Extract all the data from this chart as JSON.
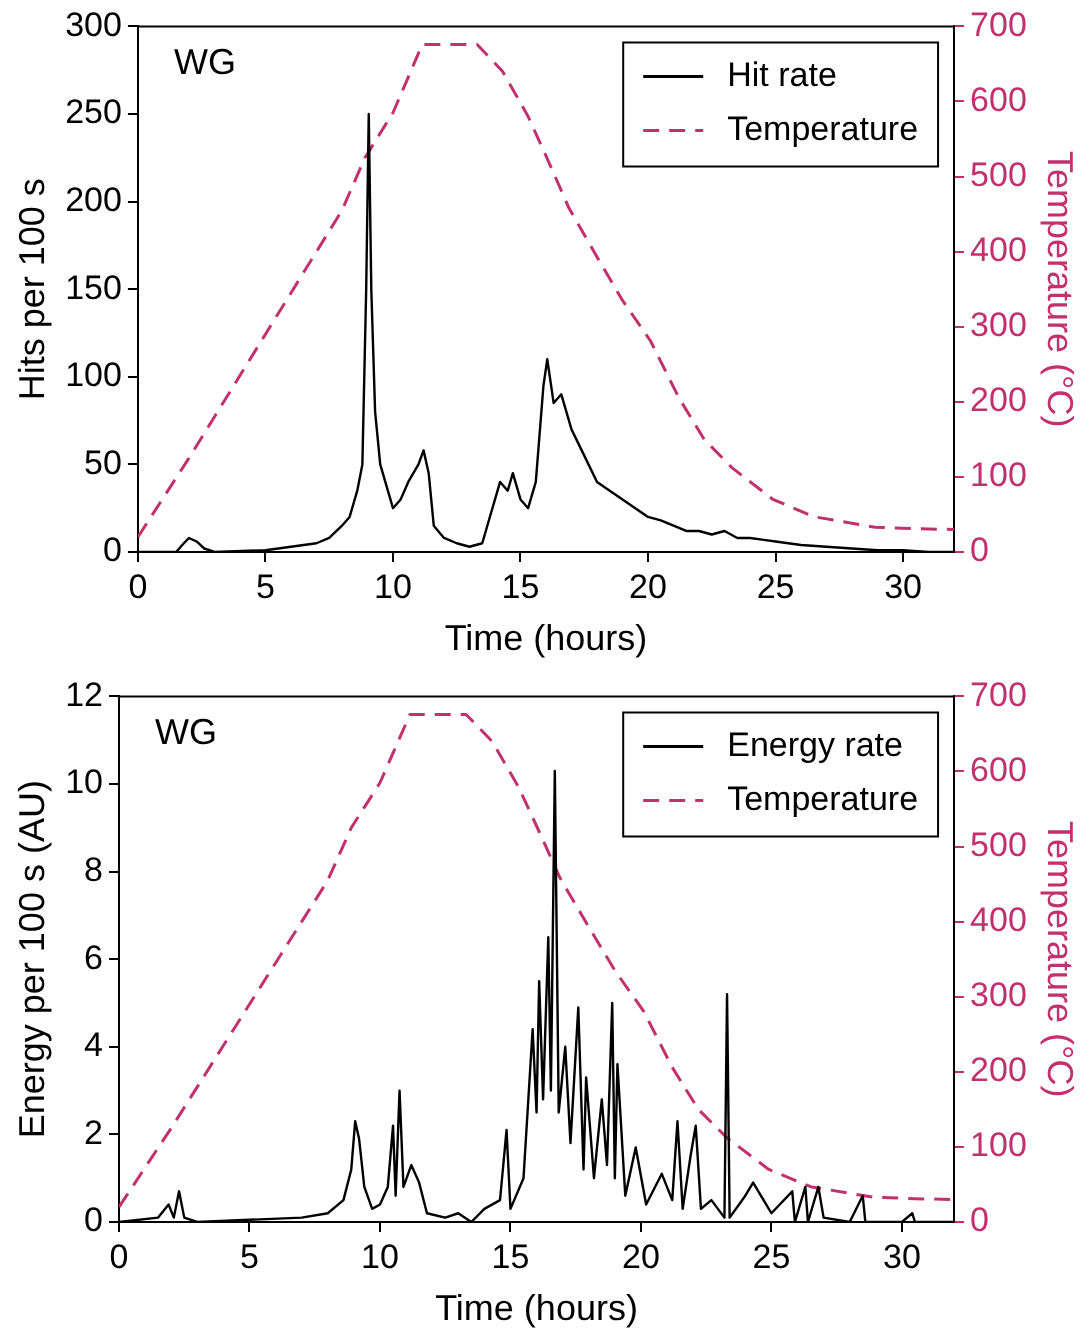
{
  "chart_data": [
    {
      "type": "line",
      "xlabel": "Time (hours)",
      "ylabel": "Hits per 100 s",
      "y2label": "Temperature (°C)",
      "annotations": [
        "WG"
      ],
      "legend": "top right",
      "xlim": [
        0,
        32
      ],
      "xticks": [
        0,
        5,
        10,
        15,
        20,
        25,
        30
      ],
      "ylim": [
        0,
        300
      ],
      "yticks": [
        0,
        50,
        100,
        150,
        200,
        250,
        300
      ],
      "y2lim": [
        0,
        700
      ],
      "y2ticks": [
        0,
        100,
        200,
        300,
        400,
        500,
        600,
        700
      ],
      "series": [
        {
          "name": "Hit rate",
          "color": "#000000",
          "line_style": "solid",
          "x": [
            0,
            1.5,
            1.8,
            2,
            2.3,
            2.6,
            3,
            5,
            6,
            7,
            7.5,
            8,
            8.3,
            8.6,
            8.8,
            8.95,
            9.05,
            9.15,
            9.3,
            9.5,
            9.7,
            10,
            10.3,
            10.6,
            11,
            11.2,
            11.4,
            11.6,
            12,
            12.5,
            13,
            13.5,
            13.8,
            14.2,
            14.5,
            14.7,
            15,
            15.3,
            15.6,
            15.9,
            16.05,
            16.3,
            16.6,
            17,
            17.5,
            18,
            18.5,
            19,
            19.5,
            20,
            20.5,
            21,
            21.5,
            22,
            22.5,
            23,
            23.5,
            24,
            25,
            26,
            27,
            28,
            29,
            30,
            31,
            32
          ],
          "values": [
            0,
            0,
            5,
            8,
            6,
            2,
            0,
            1,
            3,
            5,
            8,
            15,
            20,
            35,
            50,
            150,
            250,
            150,
            80,
            50,
            40,
            25,
            30,
            40,
            50,
            58,
            45,
            15,
            8,
            5,
            3,
            5,
            20,
            40,
            35,
            45,
            30,
            25,
            40,
            95,
            110,
            85,
            90,
            70,
            55,
            40,
            35,
            30,
            25,
            20,
            18,
            15,
            12,
            12,
            10,
            12,
            8,
            8,
            6,
            4,
            3,
            2,
            1,
            1,
            0,
            0
          ]
        },
        {
          "name": "Temperature",
          "color": "#c2306e",
          "line_style": "dashed",
          "axis": "y2",
          "x": [
            0,
            2,
            4,
            6,
            8,
            8.9,
            10,
            11.15,
            13.3,
            14.3,
            15.3,
            16.1,
            16.9,
            18,
            19,
            20.1,
            21.2,
            22.2,
            23.3,
            24.9,
            26.5,
            28.9,
            30.5,
            32
          ],
          "values": [
            20,
            125,
            235,
            345,
            455,
            525,
            585,
            676,
            676,
            640,
            580,
            520,
            458,
            393,
            335,
            281,
            206,
            150,
            112,
            70,
            47,
            33,
            31,
            30
          ]
        }
      ]
    },
    {
      "type": "line",
      "xlabel": "Time (hours)",
      "ylabel": "Energy per 100 s (AU)",
      "y2label": "Temperature (°C)",
      "annotations": [
        "WG"
      ],
      "legend": "top right",
      "xlim": [
        0,
        32
      ],
      "xticks": [
        0,
        5,
        10,
        15,
        20,
        25,
        30
      ],
      "ylim": [
        0,
        12
      ],
      "yticks": [
        0,
        2,
        4,
        6,
        8,
        10,
        12
      ],
      "y2lim": [
        0,
        700
      ],
      "y2ticks": [
        0,
        100,
        200,
        300,
        400,
        500,
        600,
        700
      ],
      "series": [
        {
          "name": "Energy rate",
          "color": "#000000",
          "line_style": "solid",
          "x": [
            0,
            1.5,
            1.9,
            2.1,
            2.3,
            2.5,
            3,
            5,
            7,
            8,
            8.6,
            8.9,
            9.05,
            9.2,
            9.4,
            9.7,
            10,
            10.3,
            10.5,
            10.6,
            10.75,
            10.9,
            11.2,
            11.5,
            11.8,
            12.5,
            13,
            13.5,
            14,
            14.6,
            14.85,
            15,
            15.5,
            15.85,
            16,
            16.1,
            16.25,
            16.45,
            16.55,
            16.7,
            16.85,
            17.1,
            17.3,
            17.6,
            17.8,
            17.9,
            18.2,
            18.5,
            18.7,
            18.9,
            19,
            19.1,
            19.4,
            19.8,
            20.2,
            20.8,
            21.2,
            21.4,
            21.6,
            21.9,
            22.1,
            22.3,
            22.7,
            23.2,
            23.3,
            23.4,
            24,
            24.3,
            25,
            25.8,
            25.9,
            26.3,
            26.4,
            26.8,
            27,
            28,
            28.5,
            28.6,
            30,
            30.4,
            30.5,
            32
          ],
          "values": [
            0,
            0.1,
            0.4,
            0.1,
            0.7,
            0.1,
            0,
            0.05,
            0.1,
            0.2,
            0.5,
            1.2,
            2.3,
            1.9,
            0.8,
            0.3,
            0.4,
            0.8,
            2.2,
            0.6,
            3.0,
            0.8,
            1.3,
            0.9,
            0.2,
            0.1,
            0.2,
            0,
            0.3,
            0.5,
            2.1,
            0.3,
            1.0,
            4.4,
            2.5,
            5.5,
            2.8,
            6.5,
            3,
            10.3,
            2.5,
            4.0,
            1.8,
            4.9,
            1.2,
            3.3,
            1.0,
            2.8,
            1.3,
            5.0,
            1.0,
            3.6,
            0.6,
            1.7,
            0.4,
            1.1,
            0.5,
            2.3,
            0.3,
            1.5,
            2.2,
            0.3,
            0.5,
            0.1,
            5.2,
            0.1,
            0.6,
            0.9,
            0.2,
            0.7,
            0,
            0.8,
            0,
            0.8,
            0.1,
            0,
            0.6,
            0,
            0,
            0.2,
            0,
            0
          ]
        },
        {
          "name": "Temperature",
          "color": "#c2306e",
          "line_style": "dashed",
          "axis": "y2",
          "x": [
            0,
            2,
            4,
            6,
            8,
            8.9,
            10,
            11.15,
            13.3,
            14.3,
            15.3,
            16.1,
            16.9,
            18,
            19,
            20.1,
            21.2,
            22.2,
            23.3,
            24.9,
            26.5,
            28.9,
            30.5,
            32
          ],
          "values": [
            20,
            125,
            235,
            345,
            455,
            525,
            585,
            676,
            676,
            640,
            580,
            520,
            458,
            393,
            335,
            281,
            206,
            150,
            112,
            70,
            47,
            33,
            31,
            30
          ]
        }
      ]
    }
  ]
}
